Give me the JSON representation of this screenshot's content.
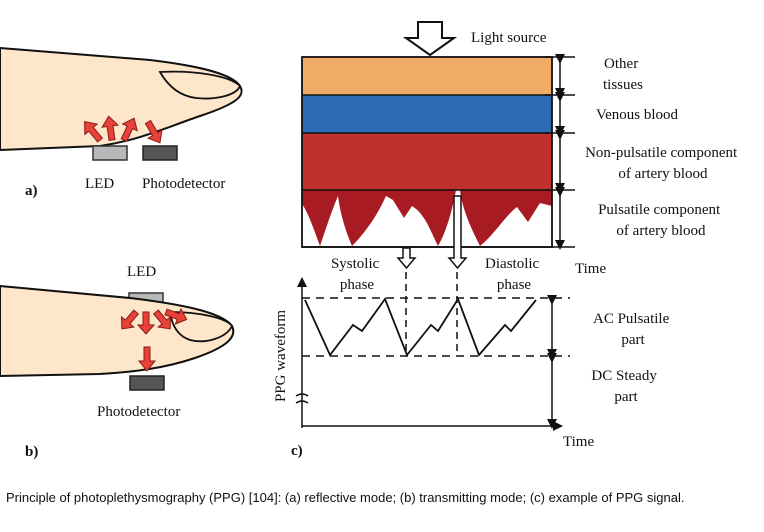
{
  "panel_a": {
    "tag": "a)",
    "led_label": "LED",
    "detector_label": "Photodetector"
  },
  "panel_b": {
    "tag": "b)",
    "led_label": "LED",
    "detector_label": "Photodetector"
  },
  "panel_c": {
    "tag": "c)",
    "light_source": "Light source",
    "layers": [
      {
        "label_lines": [
          "Other",
          "tissues"
        ],
        "color": "#f0ac66"
      },
      {
        "label_lines": [
          "Venous blood"
        ],
        "color": "#2f6ab7"
      },
      {
        "label_lines": [
          "Non-pulsatile component",
          "of artery blood"
        ],
        "color": "#c0312d"
      },
      {
        "label_lines": [
          "Pulsatile component",
          "of artery blood"
        ],
        "color": "#a91b22"
      }
    ],
    "time_label_top": "Time",
    "systolic_label": [
      "Systolic",
      "phase"
    ],
    "diastolic_label": [
      "Diastolic",
      "phase"
    ],
    "y_axis_label": "PPG waveform",
    "ac_label": [
      "AC Pulsatile",
      "part"
    ],
    "dc_label": [
      "DC Steady",
      "part"
    ],
    "time_label_bottom": "Time"
  },
  "colors": {
    "arrow_red": "#e8413a",
    "finger_fill": "#fde6c9",
    "led_gray": "#b8b8b8",
    "detector_dark": "#555555"
  },
  "caption": "Principle of photoplethysmography (PPG) [104]: (a) reflective mode; (b) transmitting mode; (c) example of PPG signal."
}
